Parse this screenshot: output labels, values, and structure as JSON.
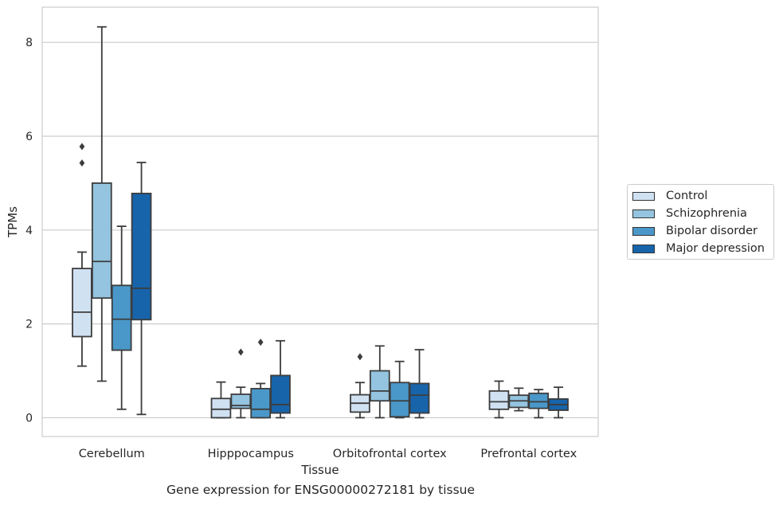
{
  "chart_data": {
    "type": "box",
    "title": "",
    "xlabel": "Tissue",
    "ylabel": "TPMs",
    "caption": "Gene expression for ENSG00000272181 by tissue",
    "categories": [
      "Cerebellum",
      "Hipppocampus",
      "Orbitofrontal cortex",
      "Prefrontal cortex"
    ],
    "ylim": [
      -0.4,
      8.75
    ],
    "yticks": [
      0,
      2,
      4,
      6,
      8
    ],
    "grid": "horizontal",
    "legend_position": "right",
    "series": [
      {
        "name": "Control",
        "color": "#d0e1f2",
        "boxes": [
          {
            "whislo": 1.1,
            "q1": 1.73,
            "med": 2.25,
            "q3": 3.18,
            "whishi": 3.53,
            "fliers": [
              5.43,
              5.78
            ]
          },
          {
            "whislo": 0.0,
            "q1": 0.0,
            "med": 0.18,
            "q3": 0.41,
            "whishi": 0.76,
            "fliers": []
          },
          {
            "whislo": 0.0,
            "q1": 0.12,
            "med": 0.31,
            "q3": 0.49,
            "whishi": 0.75,
            "fliers": [
              1.3
            ]
          },
          {
            "whislo": 0.0,
            "q1": 0.18,
            "med": 0.34,
            "q3": 0.57,
            "whishi": 0.78,
            "fliers": []
          }
        ]
      },
      {
        "name": "Schizophrenia",
        "color": "#94c4df",
        "boxes": [
          {
            "whislo": 0.78,
            "q1": 2.55,
            "med": 3.33,
            "q3": 5.0,
            "whishi": 8.33,
            "fliers": []
          },
          {
            "whislo": 0.0,
            "q1": 0.2,
            "med": 0.26,
            "q3": 0.5,
            "whishi": 0.65,
            "fliers": [
              1.4
            ]
          },
          {
            "whislo": 0.0,
            "q1": 0.36,
            "med": 0.57,
            "q3": 1.0,
            "whishi": 1.53,
            "fliers": []
          },
          {
            "whislo": 0.15,
            "q1": 0.22,
            "med": 0.36,
            "q3": 0.48,
            "whishi": 0.63,
            "fliers": []
          }
        ]
      },
      {
        "name": "Bipolar disorder",
        "color": "#4a98c9",
        "boxes": [
          {
            "whislo": 0.18,
            "q1": 1.44,
            "med": 2.1,
            "q3": 2.82,
            "whishi": 4.08,
            "fliers": []
          },
          {
            "whislo": 0.0,
            "q1": 0.0,
            "med": 0.18,
            "q3": 0.62,
            "whishi": 0.73,
            "fliers": [
              1.61
            ]
          },
          {
            "whislo": 0.0,
            "q1": 0.02,
            "med": 0.36,
            "q3": 0.75,
            "whishi": 1.2,
            "fliers": []
          },
          {
            "whislo": 0.0,
            "q1": 0.2,
            "med": 0.34,
            "q3": 0.52,
            "whishi": 0.6,
            "fliers": []
          }
        ]
      },
      {
        "name": "Major depression",
        "color": "#1764ab",
        "boxes": [
          {
            "whislo": 0.07,
            "q1": 2.09,
            "med": 2.76,
            "q3": 4.78,
            "whishi": 5.44,
            "fliers": []
          },
          {
            "whislo": 0.0,
            "q1": 0.1,
            "med": 0.28,
            "q3": 0.9,
            "whishi": 1.64,
            "fliers": []
          },
          {
            "whislo": 0.0,
            "q1": 0.1,
            "med": 0.48,
            "q3": 0.73,
            "whishi": 1.45,
            "fliers": []
          },
          {
            "whislo": 0.0,
            "q1": 0.16,
            "med": 0.28,
            "q3": 0.4,
            "whishi": 0.65,
            "fliers": []
          }
        ]
      }
    ]
  }
}
